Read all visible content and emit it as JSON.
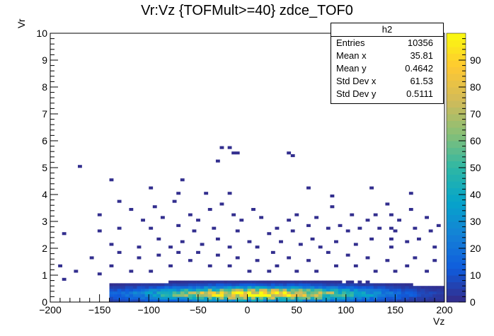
{
  "title": "Vr:Vz {TOFMult>=40} zdce_TOF0",
  "stats_box": {
    "name": "h2",
    "rows": [
      {
        "key": "Entries",
        "value": "10356"
      },
      {
        "key": "Mean x",
        "value": "35.81"
      },
      {
        "key": "Mean y",
        "value": "0.4642"
      },
      {
        "key": "Std Dev x",
        "value": "61.53"
      },
      {
        "key": "Std Dev y",
        "value": "0.5111"
      }
    ]
  },
  "chart_data": {
    "type": "heatmap",
    "title": "Vr:Vz {TOFMult>=40} zdce_TOF0",
    "xlabel": "Vz",
    "ylabel": "Vr",
    "xlim": [
      -200,
      200
    ],
    "ylim": [
      0,
      10
    ],
    "zlim": [
      0,
      100
    ],
    "x_ticks": [
      -200,
      -150,
      -100,
      -50,
      0,
      50,
      100,
      150,
      200
    ],
    "y_ticks": [
      0,
      1,
      2,
      3,
      4,
      5,
      6,
      7,
      8,
      9,
      10
    ],
    "z_ticks": [
      0,
      10,
      20,
      30,
      40,
      50,
      60,
      70,
      80,
      90
    ],
    "bin_width_x": 4,
    "bin_width_y": 0.1,
    "colormap": "kBird",
    "colormap_stops": [
      "#352a87",
      "#0f5cdd",
      "#1481d6",
      "#06a4ca",
      "#2eb7a4",
      "#87bf77",
      "#d1bb59",
      "#fec832",
      "#f9fb0e"
    ],
    "density_core": {
      "x_center": 10,
      "y_center": 0.25,
      "peak": 97
    },
    "sparse_points": [
      [
        -170,
        5.0
      ],
      [
        -140,
        4.5
      ],
      [
        -100,
        4.3
      ],
      [
        -70,
        4.1
      ],
      [
        -30,
        5.3
      ],
      [
        -25,
        5.8
      ],
      [
        -20,
        5.7
      ],
      [
        -15,
        5.6
      ],
      [
        -10,
        5.5
      ],
      [
        40,
        5.6
      ],
      [
        45,
        5.4
      ],
      [
        -150,
        3.2
      ],
      [
        -150,
        2.6
      ],
      [
        -140,
        2.1
      ],
      [
        -130,
        3.8
      ],
      [
        -130,
        2.8
      ],
      [
        -120,
        3.4
      ],
      [
        -110,
        2.0
      ],
      [
        -105,
        3.0
      ],
      [
        -100,
        2.7
      ],
      [
        -95,
        3.5
      ],
      [
        -90,
        2.4
      ],
      [
        -85,
        3.1
      ],
      [
        -80,
        2.0
      ],
      [
        -75,
        3.7
      ],
      [
        -70,
        2.9
      ],
      [
        -65,
        2.2
      ],
      [
        -60,
        3.3
      ],
      [
        -55,
        2.6
      ],
      [
        -50,
        3.0
      ],
      [
        -45,
        2.1
      ],
      [
        -42,
        4.1
      ],
      [
        -40,
        3.4
      ],
      [
        -35,
        2.8
      ],
      [
        -30,
        2.4
      ],
      [
        -25,
        3.6
      ],
      [
        -20,
        4.0
      ],
      [
        -18,
        2.0
      ],
      [
        -15,
        3.2
      ],
      [
        -10,
        2.6
      ],
      [
        -5,
        3.0
      ],
      [
        0,
        2.2
      ],
      [
        5,
        3.4
      ],
      [
        10,
        2.0
      ],
      [
        15,
        3.1
      ],
      [
        20,
        2.5
      ],
      [
        25,
        1.9
      ],
      [
        30,
        2.8
      ],
      [
        35,
        2.3
      ],
      [
        40,
        3.0
      ],
      [
        45,
        2.6
      ],
      [
        50,
        3.3
      ],
      [
        55,
        2.1
      ],
      [
        60,
        2.9
      ],
      [
        65,
        2.4
      ],
      [
        70,
        3.1
      ],
      [
        75,
        2.0
      ],
      [
        80,
        2.7
      ],
      [
        85,
        3.5
      ],
      [
        90,
        2.3
      ],
      [
        95,
        2.9
      ],
      [
        100,
        2.6
      ],
      [
        105,
        3.3
      ],
      [
        110,
        2.1
      ],
      [
        115,
        2.8
      ],
      [
        120,
        3.0
      ],
      [
        125,
        2.4
      ],
      [
        130,
        3.2
      ],
      [
        135,
        2.7
      ],
      [
        140,
        3.6
      ],
      [
        145,
        3.2
      ],
      [
        145,
        2.8
      ],
      [
        145,
        2.4
      ],
      [
        145,
        2.0
      ],
      [
        150,
        2.6
      ],
      [
        155,
        3.0
      ],
      [
        160,
        2.2
      ],
      [
        165,
        3.4
      ],
      [
        170,
        2.8
      ],
      [
        175,
        2.4
      ],
      [
        180,
        3.1
      ],
      [
        185,
        2.6
      ],
      [
        190,
        2.0
      ],
      [
        195,
        2.9
      ],
      [
        -190,
        1.3
      ],
      [
        -185,
        0.8
      ],
      [
        -175,
        1.2
      ],
      [
        -160,
        1.6
      ],
      [
        -150,
        1.0
      ],
      [
        -140,
        1.4
      ],
      [
        -130,
        1.8
      ],
      [
        -120,
        1.1
      ],
      [
        -110,
        1.6
      ],
      [
        -100,
        1.2
      ],
      [
        -90,
        1.7
      ],
      [
        -80,
        1.3
      ],
      [
        -70,
        1.8
      ],
      [
        -60,
        1.5
      ],
      [
        -50,
        1.9
      ],
      [
        -40,
        1.4
      ],
      [
        -30,
        1.7
      ],
      [
        -20,
        1.3
      ],
      [
        -10,
        1.6
      ],
      [
        0,
        1.2
      ],
      [
        10,
        1.5
      ],
      [
        20,
        1.1
      ],
      [
        30,
        1.4
      ],
      [
        40,
        1.6
      ],
      [
        50,
        1.2
      ],
      [
        60,
        1.5
      ],
      [
        70,
        1.1
      ],
      [
        80,
        1.8
      ],
      [
        90,
        1.4
      ],
      [
        100,
        1.7
      ],
      [
        110,
        1.3
      ],
      [
        120,
        1.6
      ],
      [
        130,
        1.2
      ],
      [
        140,
        1.5
      ],
      [
        150,
        1.1
      ],
      [
        160,
        1.4
      ],
      [
        170,
        1.6
      ],
      [
        180,
        1.2
      ],
      [
        190,
        1.5
      ],
      [
        165,
        4.0
      ],
      [
        125,
        4.2
      ],
      [
        85,
        3.9
      ],
      [
        60,
        4.3
      ],
      [
        -65,
        4.5
      ],
      [
        -185,
        2.5
      ]
    ]
  }
}
